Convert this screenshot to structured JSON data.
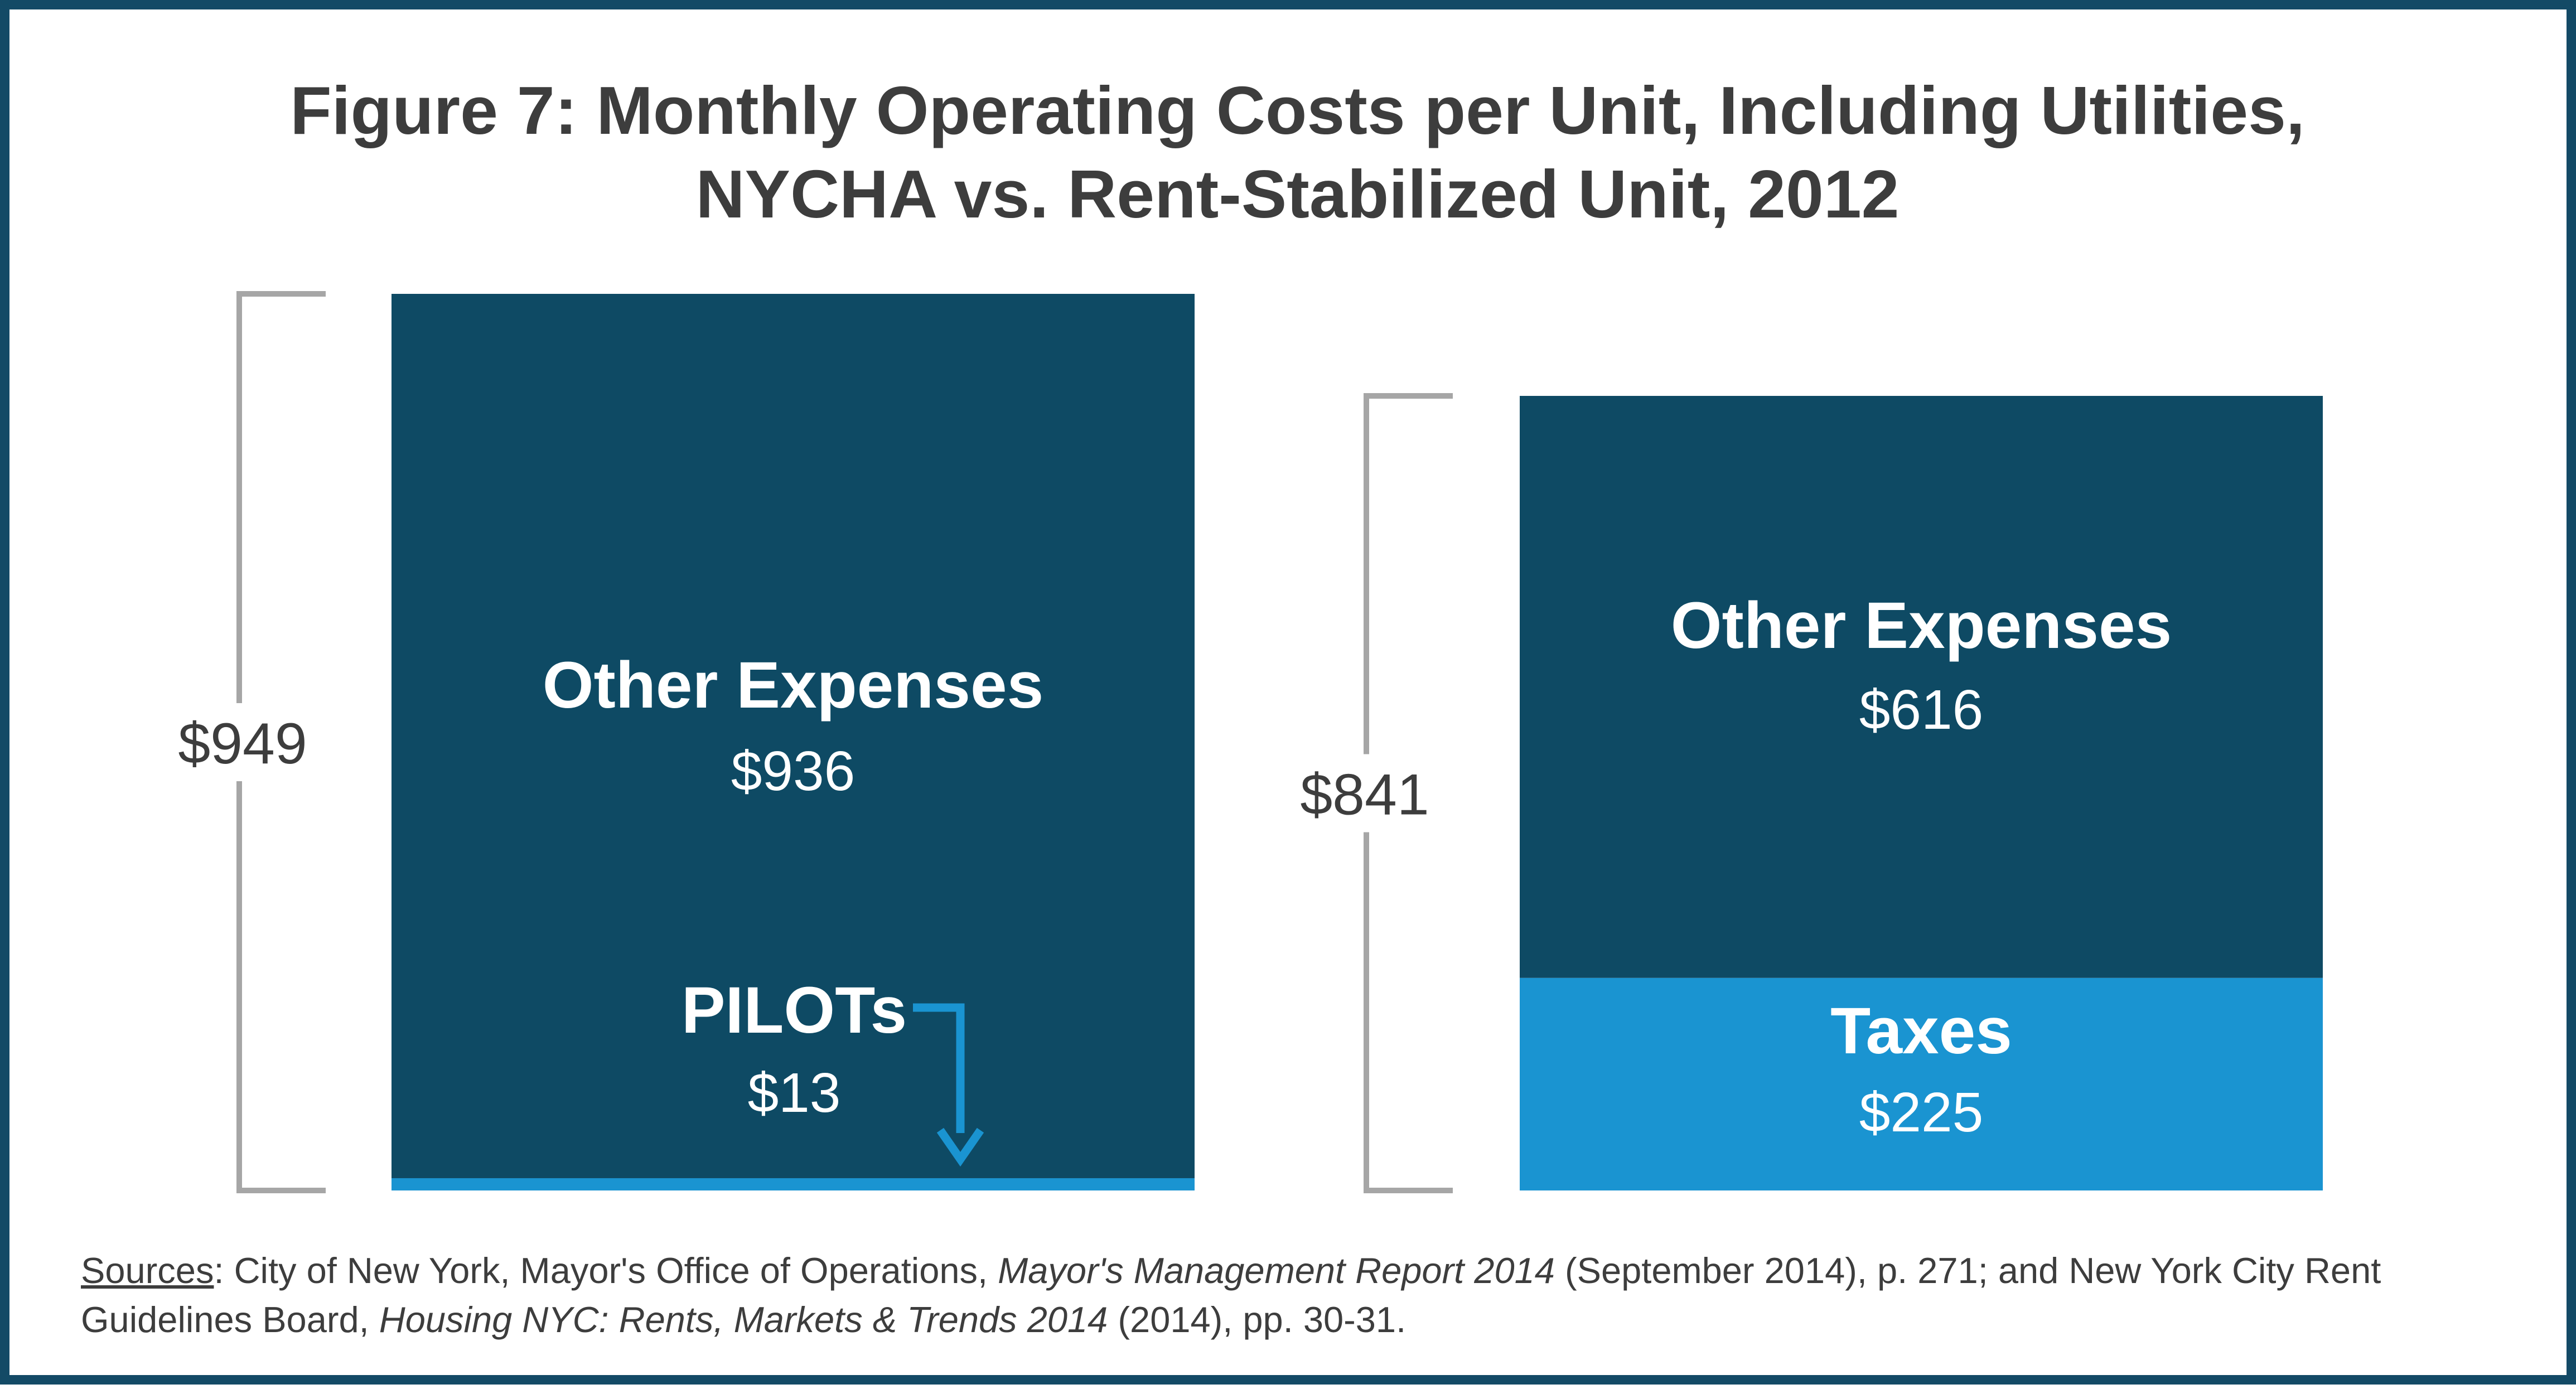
{
  "title": {
    "line1": "Figure 7: Monthly Operating Costs per Unit, Including Utilities,",
    "line2": "NYCHA vs. Rent-Stabilized Unit, 2012"
  },
  "colors": {
    "frame": "#134a66",
    "dark_segment": "#0e4a64",
    "light_segment": "#1a94d1",
    "bracket": "#a6a6a6",
    "text_dark": "#3d3d3d",
    "text_light": "#ffffff"
  },
  "chart_data": {
    "type": "bar",
    "stacked": true,
    "categories": [
      "NYCHA",
      "Rent-Stabilized Unit"
    ],
    "totals": [
      {
        "value": 949,
        "label": "$949"
      },
      {
        "value": 841,
        "label": "$841"
      }
    ],
    "bars": [
      {
        "segments": [
          {
            "name": "PILOTs",
            "value": 13,
            "label": "$13",
            "color": "#1a94d1"
          },
          {
            "name": "Other Expenses",
            "value": 936,
            "label": "$936",
            "color": "#0e4a64"
          }
        ]
      },
      {
        "segments": [
          {
            "name": "Taxes",
            "value": 225,
            "label": "$225",
            "color": "#1a94d1"
          },
          {
            "name": "Other Expenses",
            "value": 616,
            "label": "$616",
            "color": "#0e4a64"
          }
        ]
      }
    ],
    "ylim": [
      0,
      949
    ],
    "grid": false,
    "legend": "none",
    "annotations": [
      "PILOTs arrow pointing to thin segment"
    ]
  },
  "sources": {
    "label": "Sources",
    "text_1": ": City of New York, Mayor's Office of Operations, ",
    "italic_1": "Mayor's Management Report 2014",
    "text_2": " (September 2014), p. 271;  and New York City Rent",
    "text_3": "Guidelines Board, ",
    "italic_2": "Housing NYC: Rents, Markets & Trends 2014",
    "text_4": " (2014), pp. 30-31."
  }
}
